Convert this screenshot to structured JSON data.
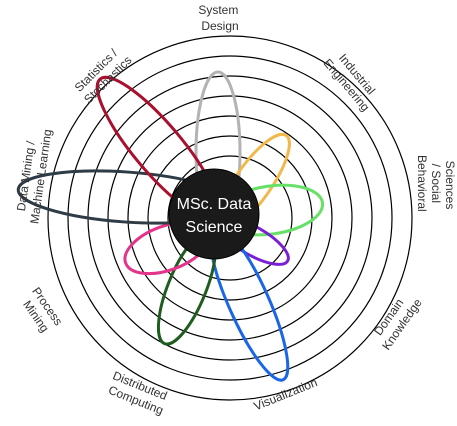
{
  "center": {
    "line1": "MSc. Data",
    "line2": "Science",
    "fill": "#1a1a1a"
  },
  "labels": {
    "system_design": [
      "System",
      "Design"
    ],
    "industrial_engineering": [
      "Industrial",
      "Engineering"
    ],
    "behavioral_social_sciences": [
      "Behavioral",
      "/ Social",
      "Sciences"
    ],
    "domain_knowledge": [
      "Domain",
      "Knowledge"
    ],
    "visualization": [
      "Visualization"
    ],
    "distributed_computing": [
      "Distributed",
      "Computing"
    ],
    "process_mining": [
      "Process",
      "Mining"
    ],
    "data_mining_machine_learning": [
      "Data Mining /",
      "Machine Learning"
    ],
    "statistics_stochastics": [
      "Statistics /",
      "Stochastics"
    ]
  },
  "colors": {
    "system_design": "#b3b3b3",
    "industrial_engineering": "#f2b84b",
    "behavioral_social_sciences": "#66e066",
    "domain_knowledge": "#7a1fd6",
    "visualization": "#1a66e6",
    "distributed_computing": "#1f5c1f",
    "process_mining": "#e6338a",
    "data_mining_machine_learning": "#2f3b45",
    "statistics_stochastics": "#a8102e",
    "rings": "#000000"
  }
}
